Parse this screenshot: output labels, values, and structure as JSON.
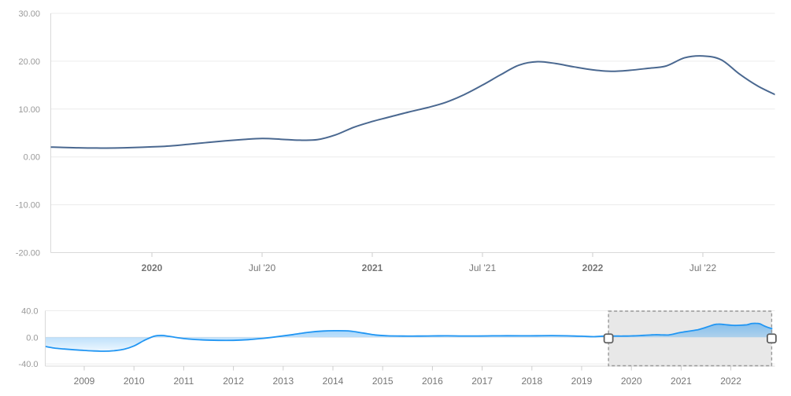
{
  "chart_data": [
    {
      "type": "line",
      "name": "main-series-selected-range",
      "title": "",
      "xlabel": "",
      "ylabel": "",
      "x": [
        "2019-07",
        "2019-08",
        "2019-09",
        "2019-10",
        "2019-11",
        "2019-12",
        "2020-01",
        "2020-02",
        "2020-03",
        "2020-04",
        "2020-05",
        "2020-06",
        "2020-07",
        "2020-08",
        "2020-09",
        "2020-10",
        "2020-11",
        "2020-12",
        "2021-01",
        "2021-02",
        "2021-03",
        "2021-04",
        "2021-05",
        "2021-06",
        "2021-07",
        "2021-08",
        "2021-09",
        "2021-10",
        "2021-11",
        "2021-12",
        "2022-01",
        "2022-02",
        "2022-03",
        "2022-04",
        "2022-05",
        "2022-06",
        "2022-07",
        "2022-08",
        "2022-09",
        "2022-10",
        "2022-11"
      ],
      "values": [
        2.1,
        2.0,
        1.9,
        1.85,
        1.85,
        1.95,
        2.1,
        2.3,
        2.65,
        3.0,
        3.35,
        3.65,
        3.85,
        3.7,
        3.5,
        3.6,
        4.6,
        6.2,
        7.4,
        8.4,
        9.4,
        10.3,
        11.4,
        13.0,
        15.0,
        17.2,
        19.2,
        19.9,
        19.5,
        18.8,
        18.2,
        17.9,
        18.1,
        18.5,
        19.0,
        20.7,
        21.1,
        20.3,
        17.3,
        14.8,
        12.9
      ],
      "ylim": [
        -20,
        30
      ],
      "xlim_years": [
        2019.54,
        2022.83
      ],
      "grid": "horizontal",
      "legend": "none",
      "y_tick_labels": [
        "30.00",
        "20.00",
        "10.00",
        "0.00",
        "-10.00",
        "-20.00"
      ],
      "y_tick_values": [
        30,
        20,
        10,
        0,
        -10,
        -20
      ],
      "x_ticks": [
        {
          "label": "2020",
          "year": 2020.0,
          "bold": true
        },
        {
          "label": "Jul '20",
          "year": 2020.5,
          "bold": false
        },
        {
          "label": "2021",
          "year": 2021.0,
          "bold": true
        },
        {
          "label": "Jul '21",
          "year": 2021.5,
          "bold": false
        },
        {
          "label": "2022",
          "year": 2022.0,
          "bold": true
        },
        {
          "label": "Jul '22",
          "year": 2022.5,
          "bold": false
        }
      ]
    },
    {
      "type": "area",
      "name": "navigator-full-history",
      "note": "navigator shows full series history; from 2019.5 onward it continues with the main series values above",
      "history_x_years": [
        2008.2,
        2008.4,
        2008.6,
        2008.8,
        2009.0,
        2009.2,
        2009.4,
        2009.6,
        2009.8,
        2010.0,
        2010.2,
        2010.4,
        2010.55,
        2010.7,
        2010.9,
        2011.1,
        2011.4,
        2011.7,
        2012.0,
        2012.3,
        2012.6,
        2012.9,
        2013.2,
        2013.5,
        2013.8,
        2014.1,
        2014.35,
        2014.6,
        2014.85,
        2015.1,
        2015.4,
        2015.7,
        2016.0,
        2016.3,
        2016.6,
        2016.9,
        2017.2,
        2017.5,
        2017.8,
        2018.1,
        2018.4,
        2018.7,
        2019.0,
        2019.25
      ],
      "history_values": [
        -13.5,
        -16.2,
        -17.6,
        -18.8,
        -19.8,
        -20.6,
        -21.0,
        -20.2,
        -18.0,
        -13.0,
        -5.0,
        1.5,
        2.8,
        1.5,
        -0.8,
        -2.6,
        -4.0,
        -4.6,
        -4.6,
        -3.5,
        -1.5,
        1.2,
        4.2,
        7.5,
        9.5,
        10.0,
        9.3,
        6.5,
        3.5,
        2.3,
        1.9,
        1.9,
        2.1,
        2.3,
        2.0,
        2.0,
        2.2,
        2.4,
        2.2,
        2.4,
        2.6,
        2.3,
        1.6,
        1.0
      ],
      "includes_main_series": true,
      "ylim": [
        -40,
        40
      ],
      "y_tick_labels": [
        "40.0",
        "0.0",
        "-40.0"
      ],
      "y_tick_values": [
        40,
        0,
        -40
      ],
      "x_tick_years": [
        2009,
        2010,
        2011,
        2012,
        2013,
        2014,
        2015,
        2016,
        2017,
        2018,
        2019,
        2020,
        2021,
        2022
      ],
      "selected_range_years": [
        2019.54,
        2022.82
      ],
      "baseline": 0
    }
  ],
  "colors": {
    "main_line": "#4a6890",
    "nav_line": "#2196f3",
    "nav_fill_top": "rgba(33,150,243,0.50)",
    "nav_fill_bottom": "rgba(33,150,243,0.08)",
    "gridline": "#ececec",
    "axis_line": "#d9d9d9",
    "tick": "#cccccc",
    "y_label": "#999999",
    "x_label": "#757575",
    "selection_fill": "#e8e8e8",
    "selection_border": "#999999",
    "handle_fill": "#ffffff",
    "handle_border": "#5f5f5f",
    "background": "#ffffff"
  }
}
